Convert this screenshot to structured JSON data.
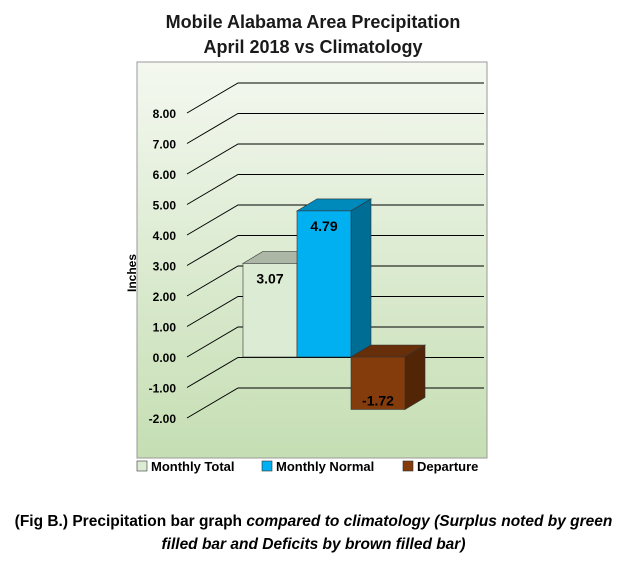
{
  "chart_data": {
    "type": "bar",
    "title": "Mobile Alabama Area Precipitation",
    "subtitle": "April 2018 vs Climatology",
    "ylabel": "Inches",
    "xlabel": "",
    "ylim": [
      -2.0,
      8.0
    ],
    "yticks": [
      "8.00",
      "7.00",
      "6.00",
      "5.00",
      "4.00",
      "3.00",
      "2.00",
      "1.00",
      "0.00",
      "-1.00",
      "-2.00"
    ],
    "grid": true,
    "legend_position": "bottom",
    "series": [
      {
        "name": "Monthly Total",
        "value": 3.07,
        "label": "3.07",
        "color": "#dcebd3"
      },
      {
        "name": "Monthly Normal",
        "value": 4.79,
        "label": "4.79",
        "color": "#00b0f0"
      },
      {
        "name": "Departure",
        "value": -1.72,
        "label": "-1.72",
        "color": "#843c0c"
      }
    ]
  },
  "caption": {
    "lead": "(Fig B.) Precipitation bar graph ",
    "italic": "compared to climatology (Surplus noted by green filled bar and Deficits by brown filled bar)"
  }
}
